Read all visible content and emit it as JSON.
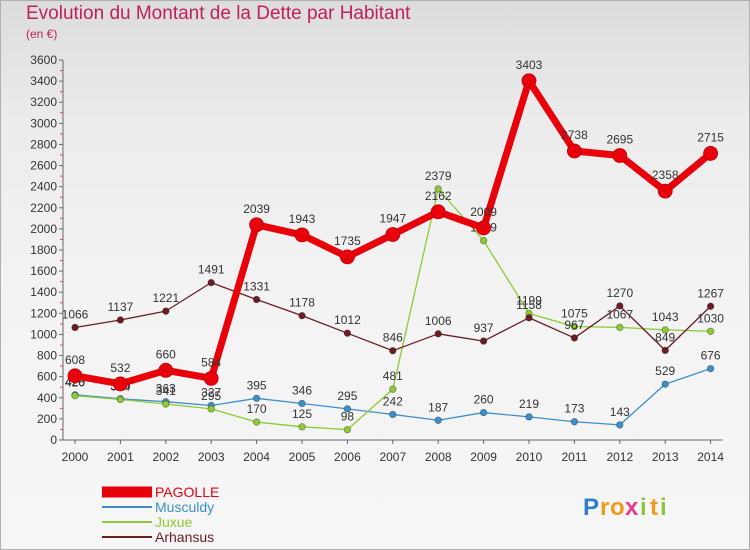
{
  "chart_data": {
    "type": "line",
    "title": "Evolution du Montant de la Dette par Habitant",
    "subtitle": "(en €)",
    "x": [
      "2000",
      "2001",
      "2002",
      "2003",
      "2004",
      "2005",
      "2006",
      "2007",
      "2008",
      "2009",
      "2010",
      "2011",
      "2012",
      "2013",
      "2014"
    ],
    "ylim": [
      0,
      3600
    ],
    "yticks": [
      0,
      200,
      400,
      600,
      800,
      1000,
      1200,
      1400,
      1600,
      1800,
      2000,
      2200,
      2400,
      2600,
      2800,
      3000,
      3200,
      3400,
      3600
    ],
    "grid": false,
    "legend_position": "bottom-left",
    "series": [
      {
        "name": "PAGOLLE",
        "color": "#e8000b",
        "bold": true,
        "values": [
          608,
          532,
          660,
          584,
          2039,
          1943,
          1735,
          1947,
          2162,
          2009,
          3403,
          2738,
          2695,
          2358,
          2715
        ]
      },
      {
        "name": "Musculdy",
        "color": "#3d8fc9",
        "bold": false,
        "values": [
          428,
          390,
          363,
          327,
          395,
          346,
          295,
          242,
          187,
          260,
          219,
          173,
          143,
          529,
          676
        ]
      },
      {
        "name": "Juxue",
        "color": "#8ccb34",
        "bold": false,
        "values": [
          420,
          384,
          341,
          295,
          170,
          125,
          98,
          481,
          2379,
          1889,
          1199,
          1075,
          1067,
          1043,
          1030
        ]
      },
      {
        "name": "Arhansus",
        "color": "#6a1e24",
        "bold": false,
        "values": [
          1066,
          1137,
          1221,
          1491,
          1331,
          1178,
          1012,
          846,
          1006,
          937,
          1158,
          967,
          1270,
          849,
          1267
        ]
      }
    ]
  },
  "logo": {
    "letters": [
      "P",
      "r",
      "o",
      "x",
      "i",
      "t",
      "i"
    ],
    "colors": [
      "#2e7fc8",
      "#f29a1c",
      "#f29a1c",
      "#e83b8e",
      "#8cc63f",
      "#f29a1c",
      "#8cc63f"
    ]
  }
}
